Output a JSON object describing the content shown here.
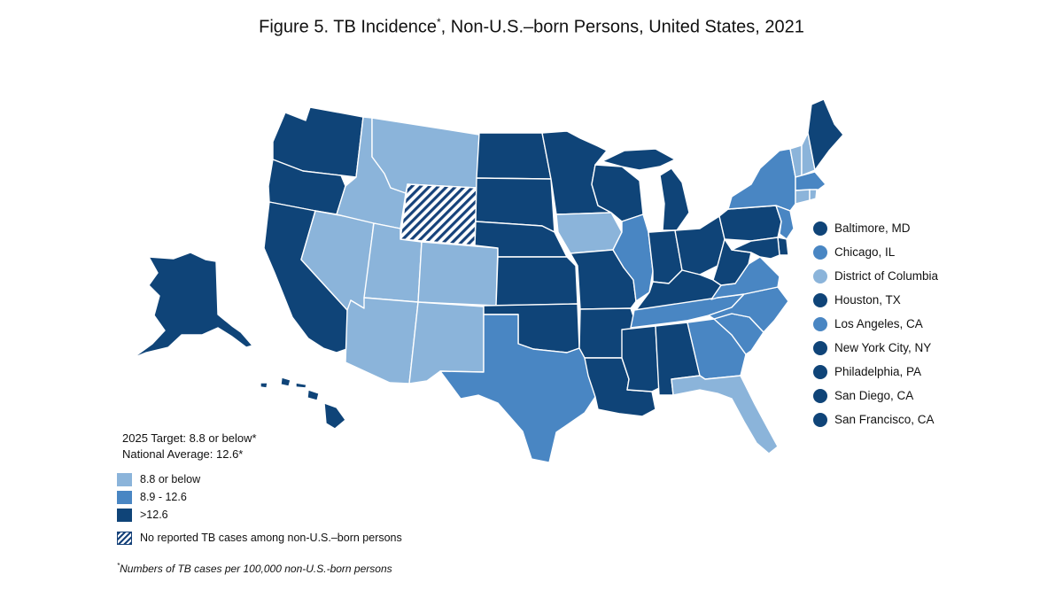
{
  "title": {
    "text_before": "Figure 5. TB Incidence",
    "marker": "*",
    "text_after": ", Non-U.S.–born Persons, United States, 2021"
  },
  "colors": {
    "high": "#0f4478",
    "mid": "#4986c3",
    "low": "#8bb4da",
    "hatch": "#16427a"
  },
  "targets": {
    "target": "2025 Target: 8.8 or below*",
    "average": "National Average: 12.6*"
  },
  "legend": {
    "low": "8.8 or below",
    "mid": "8.9 - 12.6",
    "high": ">12.6",
    "none": "No reported TB cases among non-U.S.–born persons"
  },
  "cities": [
    {
      "name": "Baltimore, MD",
      "category": "high"
    },
    {
      "name": "Chicago, IL",
      "category": "mid"
    },
    {
      "name": "District of Columbia",
      "category": "low"
    },
    {
      "name": "Houston, TX",
      "category": "high"
    },
    {
      "name": "Los Angeles, CA",
      "category": "mid"
    },
    {
      "name": "New York City, NY",
      "category": "high"
    },
    {
      "name": "Philadelphia, PA",
      "category": "high"
    },
    {
      "name": "San Diego, CA",
      "category": "high"
    },
    {
      "name": "San Francisco, CA",
      "category": "high"
    }
  ],
  "footnote": {
    "marker": "*",
    "text": "Numbers of TB cases per 100,000 non-U.S.-born persons"
  },
  "states": {
    "WA": "high",
    "OR": "high",
    "CA": "high",
    "NV": "low",
    "ID": "low",
    "MT": "low",
    "WY": "none",
    "UT": "low",
    "CO": "low",
    "AZ": "low",
    "NM": "low",
    "ND": "high",
    "SD": "high",
    "NE": "high",
    "KS": "high",
    "OK": "high",
    "TX": "mid",
    "MN": "high",
    "IA": "low",
    "MO": "high",
    "AR": "high",
    "LA": "high",
    "WI": "high",
    "IL": "mid",
    "MI": "high",
    "IN": "high",
    "OH": "high",
    "KY": "high",
    "TN": "mid",
    "MS": "high",
    "AL": "high",
    "GA": "mid",
    "FL": "low",
    "SC": "mid",
    "NC": "mid",
    "VA": "mid",
    "WV": "high",
    "PA": "high",
    "NY": "mid",
    "VT": "low",
    "NH": "low",
    "ME": "high",
    "MA": "mid",
    "CT": "low",
    "RI": "low",
    "NJ": "mid",
    "DE": "high",
    "MD": "high",
    "AK": "high",
    "HI": "high"
  }
}
